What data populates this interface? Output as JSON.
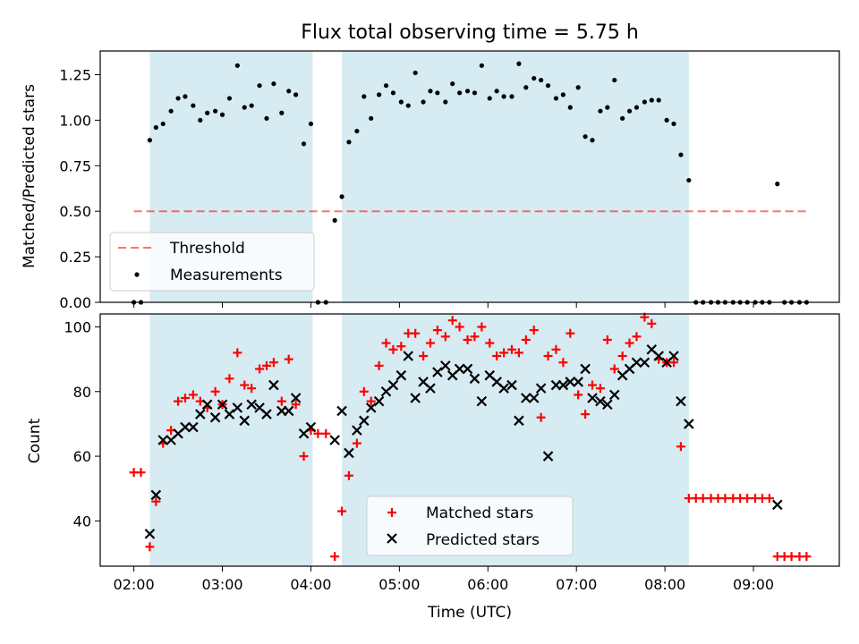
{
  "figure": {
    "title": "Flux total observing time = 5.75 h",
    "xlabel": "Time (UTC)",
    "x_ticks": [
      {
        "t": 2.0,
        "label": "02:00"
      },
      {
        "t": 3.0,
        "label": "03:00"
      },
      {
        "t": 4.0,
        "label": "04:00"
      },
      {
        "t": 5.0,
        "label": "05:00"
      },
      {
        "t": 6.0,
        "label": "06:00"
      },
      {
        "t": 7.0,
        "label": "07:00"
      },
      {
        "t": 8.0,
        "label": "08:00"
      },
      {
        "t": 9.0,
        "label": "09:00"
      }
    ],
    "xlim": [
      1.62,
      9.97
    ],
    "shaded_intervals": [
      [
        2.18,
        4.02
      ],
      [
        4.35,
        8.27
      ]
    ],
    "colors": {
      "shade": "#add8e6",
      "threshold": "#ff0000",
      "measurement": "#000000",
      "matched": "#ff0000",
      "predicted": "#000000"
    }
  },
  "chart_data": [
    {
      "type": "scatter",
      "ylabel": "Matched/Predicted stars",
      "ylim": [
        0,
        1.38
      ],
      "y_ticks": [
        "0.00",
        "0.25",
        "0.50",
        "0.75",
        "1.00",
        "1.25"
      ],
      "threshold": {
        "name": "Threshold",
        "y": 0.5,
        "x_range": [
          2.0,
          9.6
        ]
      },
      "legend": {
        "position": "lower left",
        "entries": [
          "Threshold",
          "Measurements"
        ]
      },
      "series": [
        {
          "name": "Measurements",
          "x": [
            2.0,
            2.08,
            2.18,
            2.25,
            2.33,
            2.42,
            2.5,
            2.58,
            2.67,
            2.75,
            2.83,
            2.92,
            3.0,
            3.08,
            3.17,
            3.25,
            3.33,
            3.42,
            3.5,
            3.58,
            3.67,
            3.75,
            3.83,
            3.92,
            4.0,
            4.08,
            4.17,
            4.27,
            4.35,
            4.43,
            4.52,
            4.6,
            4.68,
            4.77,
            4.85,
            4.93,
            5.02,
            5.1,
            5.18,
            5.27,
            5.35,
            5.43,
            5.52,
            5.6,
            5.68,
            5.77,
            5.85,
            5.93,
            6.02,
            6.1,
            6.18,
            6.27,
            6.35,
            6.43,
            6.52,
            6.6,
            6.68,
            6.77,
            6.85,
            6.93,
            7.02,
            7.1,
            7.18,
            7.27,
            7.35,
            7.43,
            7.52,
            7.6,
            7.68,
            7.77,
            7.85,
            7.93,
            8.02,
            8.1,
            8.18,
            8.27,
            8.35,
            8.43,
            8.52,
            8.6,
            8.68,
            8.77,
            8.85,
            8.93,
            9.02,
            9.1,
            9.18,
            9.27,
            9.35,
            9.43,
            9.52,
            9.6
          ],
          "y": [
            0,
            0,
            0.89,
            0.96,
            0.98,
            1.05,
            1.12,
            1.13,
            1.08,
            1.0,
            1.04,
            1.05,
            1.03,
            1.12,
            1.3,
            1.07,
            1.08,
            1.19,
            1.01,
            1.2,
            1.04,
            1.16,
            1.14,
            0.87,
            0.98,
            0,
            0,
            0.45,
            0.58,
            0.88,
            0.94,
            1.13,
            1.01,
            1.14,
            1.19,
            1.15,
            1.1,
            1.08,
            1.26,
            1.1,
            1.16,
            1.15,
            1.1,
            1.2,
            1.15,
            1.16,
            1.15,
            1.3,
            1.12,
            1.16,
            1.13,
            1.13,
            1.31,
            1.18,
            1.23,
            1.22,
            1.19,
            1.12,
            1.14,
            1.07,
            1.18,
            0.91,
            0.89,
            1.05,
            1.07,
            1.22,
            1.01,
            1.05,
            1.07,
            1.1,
            1.11,
            1.11,
            1.0,
            0.98,
            0.81,
            0.67,
            0,
            0,
            0,
            0,
            0,
            0,
            0,
            0,
            0,
            0,
            0,
            0.65,
            0,
            0,
            0,
            0
          ]
        }
      ]
    },
    {
      "type": "scatter",
      "ylabel": "Count",
      "ylim": [
        26,
        104
      ],
      "y_ticks": [
        "40",
        "60",
        "80",
        "100"
      ],
      "legend": {
        "position": "lower center",
        "entries": [
          "Matched stars",
          "Predicted stars"
        ]
      },
      "series": [
        {
          "name": "Matched stars",
          "x": [
            2.0,
            2.08,
            2.18,
            2.25,
            2.33,
            2.42,
            2.5,
            2.58,
            2.67,
            2.75,
            2.83,
            2.92,
            3.0,
            3.08,
            3.17,
            3.25,
            3.33,
            3.42,
            3.5,
            3.58,
            3.67,
            3.75,
            3.83,
            3.92,
            4.0,
            4.08,
            4.17,
            4.27,
            4.35,
            4.43,
            4.52,
            4.6,
            4.68,
            4.77,
            4.85,
            4.93,
            5.02,
            5.1,
            5.18,
            5.27,
            5.35,
            5.43,
            5.52,
            5.6,
            5.68,
            5.77,
            5.85,
            5.93,
            6.02,
            6.1,
            6.18,
            6.27,
            6.35,
            6.43,
            6.52,
            6.6,
            6.68,
            6.77,
            6.85,
            6.93,
            7.02,
            7.1,
            7.18,
            7.27,
            7.35,
            7.43,
            7.52,
            7.6,
            7.68,
            7.77,
            7.85,
            7.93,
            8.02,
            8.1,
            8.18,
            8.27,
            8.35,
            8.43,
            8.52,
            8.6,
            8.68,
            8.77,
            8.85,
            8.93,
            9.02,
            9.1,
            9.18,
            9.27,
            9.35,
            9.43,
            9.52,
            9.6
          ],
          "y": [
            55,
            55,
            32,
            46,
            64,
            68,
            77,
            78,
            79,
            77,
            75,
            80,
            76,
            84,
            92,
            82,
            81,
            87,
            88,
            89,
            77,
            90,
            76,
            60,
            68,
            67,
            67,
            29,
            43,
            54,
            64,
            80,
            77,
            88,
            95,
            93,
            94,
            98,
            98,
            91,
            95,
            99,
            97,
            102,
            100,
            96,
            97,
            100,
            95,
            91,
            92,
            93,
            92,
            96,
            99,
            72,
            91,
            93,
            89,
            98,
            79,
            73,
            82,
            81,
            96,
            87,
            91,
            95,
            97,
            103,
            101,
            90,
            89,
            89,
            63,
            47,
            47,
            47,
            47,
            47,
            47,
            47,
            47,
            47,
            47,
            47,
            47,
            29,
            29,
            29,
            29,
            29
          ]
        },
        {
          "name": "Predicted stars",
          "x": [
            2.18,
            2.25,
            2.33,
            2.42,
            2.5,
            2.58,
            2.67,
            2.75,
            2.83,
            2.92,
            3.0,
            3.08,
            3.17,
            3.25,
            3.33,
            3.42,
            3.5,
            3.58,
            3.67,
            3.75,
            3.83,
            3.92,
            4.0,
            4.27,
            4.35,
            4.43,
            4.52,
            4.6,
            4.68,
            4.77,
            4.85,
            4.93,
            5.02,
            5.1,
            5.18,
            5.27,
            5.35,
            5.43,
            5.52,
            5.6,
            5.68,
            5.77,
            5.85,
            5.93,
            6.02,
            6.1,
            6.18,
            6.27,
            6.35,
            6.43,
            6.52,
            6.6,
            6.68,
            6.77,
            6.85,
            6.93,
            7.02,
            7.1,
            7.18,
            7.27,
            7.35,
            7.43,
            7.52,
            7.6,
            7.68,
            7.77,
            7.85,
            7.93,
            8.02,
            8.1,
            8.18,
            8.27,
            9.27
          ],
          "y": [
            36,
            48,
            65,
            65,
            67,
            69,
            69,
            73,
            76,
            72,
            76,
            73,
            75,
            71,
            76,
            75,
            73,
            82,
            74,
            74,
            78,
            67,
            69,
            65,
            74,
            61,
            68,
            71,
            75,
            77,
            80,
            82,
            85,
            91,
            78,
            83,
            81,
            86,
            88,
            85,
            87,
            87,
            84,
            77,
            85,
            83,
            81,
            82,
            71,
            78,
            78,
            81,
            60,
            82,
            82,
            83,
            83,
            87,
            78,
            77,
            76,
            79,
            85,
            87,
            89,
            89,
            93,
            91,
            89,
            91,
            77,
            70,
            45
          ]
        }
      ]
    }
  ]
}
